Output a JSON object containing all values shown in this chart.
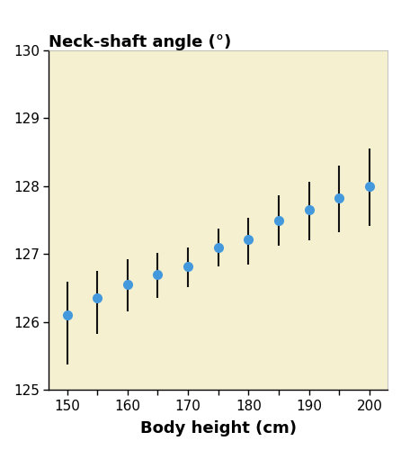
{
  "x": [
    150,
    155,
    160,
    165,
    170,
    175,
    180,
    185,
    190,
    195,
    200
  ],
  "y": [
    126.1,
    126.35,
    126.55,
    126.7,
    126.82,
    127.1,
    127.22,
    127.5,
    127.65,
    127.82,
    128.0
  ],
  "yerr_upper": [
    0.5,
    0.4,
    0.38,
    0.32,
    0.28,
    0.27,
    0.32,
    0.37,
    0.42,
    0.48,
    0.55
  ],
  "yerr_lower": [
    0.72,
    0.52,
    0.4,
    0.35,
    0.3,
    0.28,
    0.37,
    0.38,
    0.45,
    0.5,
    0.58
  ],
  "title": "Neck-shaft angle (°)",
  "xlabel": "Body height (cm)",
  "ylim": [
    125,
    130
  ],
  "xlim": [
    147,
    203
  ],
  "yticks": [
    125,
    126,
    127,
    128,
    129,
    130
  ],
  "xticks": [
    150,
    155,
    160,
    165,
    170,
    175,
    180,
    185,
    190,
    195,
    200
  ],
  "xticklabels": [
    "150",
    "",
    "160",
    "",
    "170",
    "",
    "180",
    "",
    "190",
    "",
    "200"
  ],
  "point_color": "#4499dd",
  "error_color": "#111111",
  "bg_color": "#f5f0d0",
  "figure_bg": "#ffffff"
}
